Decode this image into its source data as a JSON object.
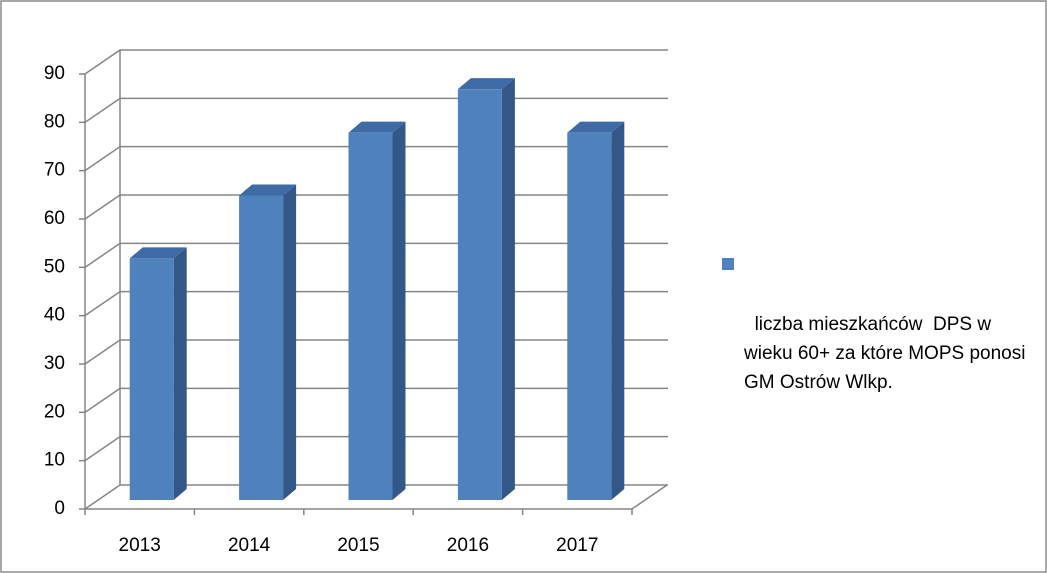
{
  "chart_data": {
    "type": "bar3d",
    "categories": [
      "2013",
      "2014",
      "2015",
      "2016",
      "2017"
    ],
    "series": [
      {
        "name": "liczba mieszkańców  DPS w wieku 60+ za które MOPS ponosi GM Ostrów Wlkp.",
        "color": "#4f81bd",
        "values": [
          50,
          63,
          76,
          85,
          76
        ]
      }
    ],
    "ylim": [
      0,
      90
    ],
    "yticks": [
      0,
      10,
      20,
      30,
      40,
      50,
      60,
      70,
      80,
      90
    ],
    "grid": true,
    "legend": "right"
  }
}
